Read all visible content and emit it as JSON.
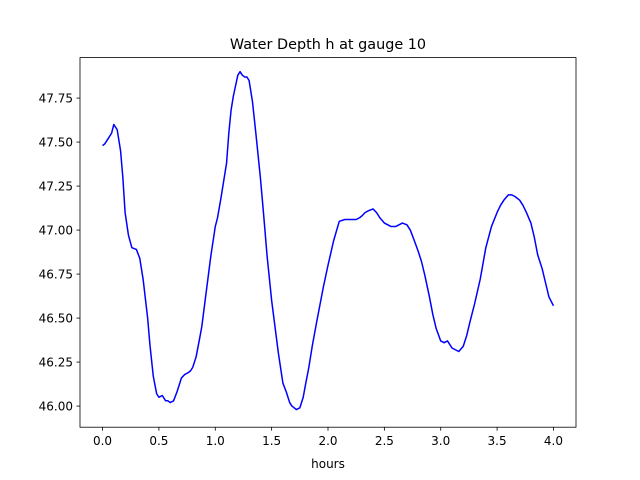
{
  "chart_data": {
    "type": "line",
    "title": "Water Depth h at gauge 10",
    "xlabel": "hours",
    "ylabel": "",
    "xlim": [
      -0.2,
      4.2
    ],
    "ylim": [
      45.88,
      47.98
    ],
    "xticks": [
      0.0,
      0.5,
      1.0,
      1.5,
      2.0,
      2.5,
      3.0,
      3.5,
      4.0
    ],
    "xtick_labels": [
      "0.0",
      "0.5",
      "1.0",
      "1.5",
      "2.0",
      "2.5",
      "3.0",
      "3.5",
      "4.0"
    ],
    "yticks": [
      46.0,
      46.25,
      46.5,
      46.75,
      47.0,
      47.25,
      47.5,
      47.75
    ],
    "ytick_labels": [
      "46.00",
      "46.25",
      "46.50",
      "46.75",
      "47.00",
      "47.25",
      "47.50",
      "47.75"
    ],
    "grid": false,
    "legend": "none",
    "series": [
      {
        "color": "#0000ff",
        "x": [
          0.0,
          0.02,
          0.05,
          0.08,
          0.1,
          0.13,
          0.16,
          0.18,
          0.2,
          0.23,
          0.26,
          0.3,
          0.33,
          0.36,
          0.4,
          0.42,
          0.45,
          0.48,
          0.5,
          0.53,
          0.56,
          0.58,
          0.6,
          0.63,
          0.66,
          0.68,
          0.7,
          0.73,
          0.76,
          0.78,
          0.8,
          0.83,
          0.86,
          0.88,
          0.9,
          0.93,
          0.96,
          1.0,
          1.02,
          1.05,
          1.08,
          1.1,
          1.12,
          1.14,
          1.16,
          1.18,
          1.2,
          1.22,
          1.24,
          1.26,
          1.28,
          1.3,
          1.33,
          1.36,
          1.4,
          1.43,
          1.46,
          1.5,
          1.53,
          1.56,
          1.6,
          1.63,
          1.66,
          1.68,
          1.7,
          1.72,
          1.75,
          1.78,
          1.8,
          1.83,
          1.86,
          1.9,
          1.93,
          1.96,
          2.0,
          2.05,
          2.1,
          2.15,
          2.2,
          2.22,
          2.25,
          2.28,
          2.3,
          2.33,
          2.36,
          2.4,
          2.43,
          2.46,
          2.5,
          2.53,
          2.56,
          2.6,
          2.63,
          2.66,
          2.7,
          2.73,
          2.76,
          2.8,
          2.83,
          2.86,
          2.9,
          2.93,
          2.96,
          3.0,
          3.03,
          3.06,
          3.1,
          3.13,
          3.16,
          3.2,
          3.23,
          3.26,
          3.3,
          3.35,
          3.4,
          3.45,
          3.5,
          3.53,
          3.56,
          3.6,
          3.63,
          3.66,
          3.7,
          3.73,
          3.76,
          3.8,
          3.83,
          3.86,
          3.9,
          3.93,
          3.96,
          4.0
        ],
        "y": [
          47.48,
          47.49,
          47.52,
          47.55,
          47.6,
          47.57,
          47.45,
          47.3,
          47.1,
          46.97,
          46.9,
          46.89,
          46.84,
          46.72,
          46.5,
          46.35,
          46.17,
          46.07,
          46.05,
          46.06,
          46.03,
          46.03,
          46.02,
          46.03,
          46.08,
          46.12,
          46.16,
          46.18,
          46.19,
          46.2,
          46.22,
          46.28,
          46.38,
          46.45,
          46.55,
          46.7,
          46.85,
          47.02,
          47.07,
          47.18,
          47.3,
          47.38,
          47.55,
          47.68,
          47.76,
          47.82,
          47.88,
          47.9,
          47.88,
          47.87,
          47.87,
          47.85,
          47.73,
          47.55,
          47.3,
          47.08,
          46.85,
          46.6,
          46.45,
          46.3,
          46.13,
          46.08,
          46.02,
          46.0,
          45.99,
          45.98,
          45.99,
          46.05,
          46.12,
          46.22,
          46.34,
          46.48,
          46.58,
          46.68,
          46.8,
          46.94,
          47.05,
          47.06,
          47.06,
          47.06,
          47.06,
          47.07,
          47.08,
          47.1,
          47.11,
          47.12,
          47.1,
          47.07,
          47.04,
          47.03,
          47.02,
          47.02,
          47.03,
          47.04,
          47.03,
          47.0,
          46.95,
          46.88,
          46.82,
          46.74,
          46.62,
          46.52,
          46.44,
          46.37,
          46.36,
          46.37,
          46.33,
          46.32,
          46.31,
          46.34,
          46.4,
          46.48,
          46.58,
          46.72,
          46.9,
          47.02,
          47.1,
          47.14,
          47.17,
          47.2,
          47.2,
          47.19,
          47.17,
          47.14,
          47.1,
          47.04,
          46.96,
          46.86,
          46.78,
          46.7,
          46.62,
          46.57
        ]
      }
    ]
  }
}
